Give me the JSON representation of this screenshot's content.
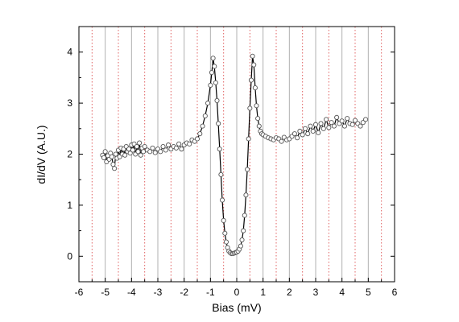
{
  "chart_data": {
    "type": "line",
    "xlabel": "Bias (mV)",
    "ylabel": "dI/dV (A.U.)",
    "xlim": [
      -6,
      6
    ],
    "ylim": [
      -0.5,
      4.5
    ],
    "x_ticks": [
      -6,
      -5,
      -4,
      -3,
      -2,
      -1,
      0,
      1,
      2,
      3,
      4,
      5,
      6
    ],
    "y_ticks": [
      0,
      1,
      2,
      3,
      4
    ],
    "x_tick_labels": [
      "-6",
      "-5",
      "-4",
      "-3",
      "-2",
      "-1",
      "0",
      "1",
      "2",
      "3",
      "4",
      "5",
      "6"
    ],
    "y_tick_labels": [
      "0",
      "1",
      "2",
      "3",
      "4"
    ],
    "grid": {
      "gray_vertical_lines_at": [
        -5,
        -4,
        -3,
        -2,
        -1,
        0,
        1,
        2,
        3,
        4,
        5
      ],
      "red_dotted_vertical_lines_at": [
        -5.5,
        -4.5,
        -3.5,
        -2.5,
        -1.5,
        -0.5,
        0.5,
        1.5,
        2.5,
        3.5,
        4.5,
        5.5
      ],
      "gray_color": "#b0b0b0",
      "red_color": "#e06060"
    },
    "series": [
      {
        "marker": "open-circle",
        "line_color": "#000000",
        "x": [
          -5.1,
          -5.05,
          -5.0,
          -4.95,
          -4.9,
          -4.85,
          -4.8,
          -4.75,
          -4.7,
          -4.65,
          -4.6,
          -4.55,
          -4.5,
          -4.45,
          -4.4,
          -4.35,
          -4.3,
          -4.25,
          -4.2,
          -4.15,
          -4.1,
          -4.05,
          -4.0,
          -3.95,
          -3.9,
          -3.85,
          -3.8,
          -3.75,
          -3.7,
          -3.65,
          -3.6,
          -3.55,
          -3.5,
          -3.4,
          -3.3,
          -3.2,
          -3.1,
          -3.0,
          -2.9,
          -2.8,
          -2.7,
          -2.6,
          -2.5,
          -2.4,
          -2.3,
          -2.2,
          -2.1,
          -2.0,
          -1.9,
          -1.8,
          -1.7,
          -1.6,
          -1.5,
          -1.4,
          -1.3,
          -1.2,
          -1.1,
          -1.0,
          -0.95,
          -0.9,
          -0.85,
          -0.8,
          -0.75,
          -0.7,
          -0.65,
          -0.6,
          -0.55,
          -0.5,
          -0.45,
          -0.4,
          -0.35,
          -0.3,
          -0.25,
          -0.2,
          -0.15,
          -0.1,
          -0.05,
          0.0,
          0.05,
          0.1,
          0.15,
          0.2,
          0.25,
          0.3,
          0.35,
          0.4,
          0.45,
          0.5,
          0.55,
          0.6,
          0.65,
          0.7,
          0.75,
          0.8,
          0.85,
          0.9,
          0.95,
          1.0,
          1.1,
          1.2,
          1.3,
          1.4,
          1.5,
          1.6,
          1.7,
          1.8,
          1.9,
          2.0,
          2.1,
          2.2,
          2.3,
          2.4,
          2.5,
          2.6,
          2.7,
          2.8,
          2.9,
          3.0,
          3.1,
          3.2,
          3.3,
          3.4,
          3.5,
          3.6,
          3.7,
          3.8,
          3.9,
          4.0,
          4.1,
          4.2,
          4.3,
          4.4,
          4.5,
          4.6,
          4.7,
          4.8,
          4.9
        ],
        "y": [
          1.98,
          1.93,
          2.05,
          1.85,
          1.97,
          1.9,
          2.02,
          1.95,
          1.8,
          1.72,
          2.0,
          1.92,
          2.08,
          1.95,
          2.12,
          2.0,
          2.1,
          1.98,
          2.15,
          2.05,
          2.1,
          2.02,
          2.18,
          2.08,
          2.2,
          2.0,
          2.15,
          2.05,
          2.22,
          1.98,
          2.12,
          2.05,
          2.15,
          2.08,
          2.05,
          2.12,
          2.03,
          2.1,
          2.05,
          2.15,
          2.08,
          2.18,
          2.1,
          2.15,
          2.12,
          2.2,
          2.1,
          2.18,
          2.22,
          2.2,
          2.28,
          2.25,
          2.3,
          2.4,
          2.55,
          2.75,
          3.0,
          3.35,
          3.6,
          3.88,
          3.72,
          3.4,
          3.05,
          2.6,
          2.1,
          1.6,
          1.1,
          0.7,
          0.45,
          0.28,
          0.17,
          0.1,
          0.07,
          0.05,
          0.05,
          0.06,
          0.07,
          0.08,
          0.1,
          0.14,
          0.2,
          0.32,
          0.5,
          0.8,
          1.2,
          1.7,
          2.3,
          2.9,
          3.45,
          3.92,
          3.75,
          3.3,
          2.95,
          2.7,
          2.55,
          2.45,
          2.4,
          2.38,
          2.35,
          2.32,
          2.3,
          2.28,
          2.32,
          2.3,
          2.25,
          2.33,
          2.28,
          2.3,
          2.35,
          2.4,
          2.32,
          2.45,
          2.38,
          2.5,
          2.4,
          2.55,
          2.45,
          2.58,
          2.42,
          2.6,
          2.5,
          2.68,
          2.52,
          2.62,
          2.55,
          2.72,
          2.6,
          2.65,
          2.55,
          2.7,
          2.6,
          2.58,
          2.66,
          2.6,
          2.55,
          2.62,
          2.68
        ]
      }
    ]
  }
}
